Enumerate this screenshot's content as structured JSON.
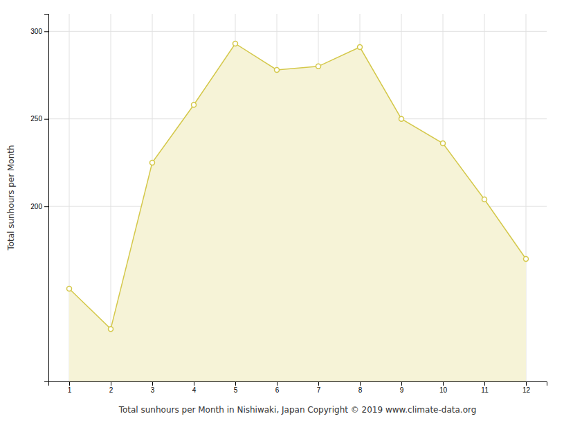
{
  "chart_data": {
    "type": "area",
    "xlabel": "Total sunhours per Month in Nishiwaki, Japan Copyright © 2019 www.climate-data.org",
    "ylabel": "Total sunhours per Month",
    "x": [
      1,
      2,
      3,
      4,
      5,
      6,
      7,
      8,
      9,
      10,
      11,
      12
    ],
    "values": [
      153,
      130,
      225,
      258,
      293,
      278,
      280,
      291,
      250,
      236,
      204,
      170
    ],
    "color": "#D4C84A",
    "marker": "circle",
    "xlim": [
      0.5,
      12.5
    ],
    "xticks": [
      1,
      2,
      3,
      4,
      5,
      6,
      7,
      8,
      9,
      10,
      11,
      12
    ],
    "ylim": [
      100,
      310
    ],
    "yticks": [
      200,
      250,
      300
    ],
    "grid": true
  }
}
